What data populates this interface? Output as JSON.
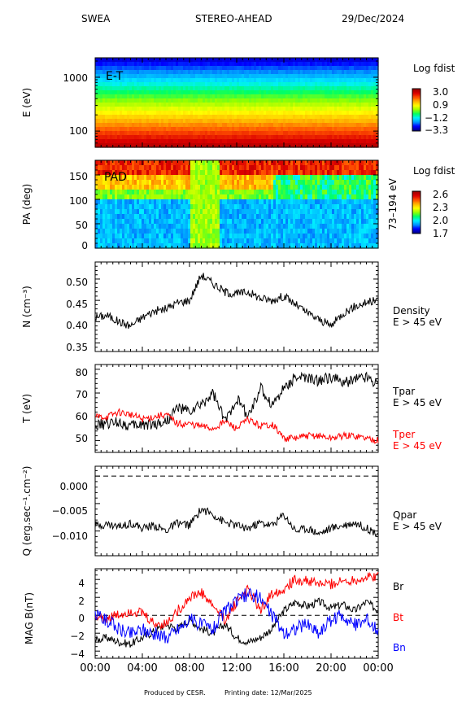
{
  "header": {
    "instrument": "SWEA",
    "spacecraft": "STEREO-AHEAD",
    "date": "29/Dec/2024"
  },
  "footer": {
    "produced_by": "Produced by CESR.",
    "printing_date": "Printing date: 12/Mar/2025"
  },
  "time_axis": {
    "tick_labels": [
      "00:00",
      "04:00",
      "08:00",
      "12:00",
      "16:00",
      "20:00",
      "00:00"
    ],
    "range_hours": [
      0,
      24
    ]
  },
  "colors": {
    "black_trace": "#000000",
    "red_trace": "#ff0000",
    "blue_trace": "#0000ff",
    "colorbar_stops": [
      "#00008c",
      "#0000ff",
      "#0096ff",
      "#00f0ff",
      "#00ff64",
      "#96ff00",
      "#ffff00",
      "#ffb400",
      "#ff5000",
      "#dc0000",
      "#a00000"
    ]
  },
  "chart_data": [
    {
      "type": "heatmap",
      "inner_label": "E-T",
      "ylabel": "E (eV)",
      "y_scale": "log",
      "y_ticks": [
        "1000",
        "100"
      ],
      "colorbar_title": "Log fdist",
      "colorbar_ticks": [
        "3.0",
        "0.9",
        "−1.2",
        "−3.3"
      ],
      "colorbar_range": [
        -3.3,
        3.0
      ]
    },
    {
      "type": "heatmap",
      "inner_label": "PAD",
      "ylabel": "PA (deg)",
      "ylim": [
        0,
        180
      ],
      "y_ticks": [
        "150",
        "100",
        "50",
        "0"
      ],
      "right_label": "73–194 eV",
      "colorbar_title": "Log fdist",
      "colorbar_ticks": [
        "2.6",
        "2.3",
        "2.0",
        "1.7"
      ],
      "colorbar_range": [
        1.7,
        2.6
      ]
    },
    {
      "type": "line",
      "ylabel": "N (cm⁻³)",
      "ylim": [
        0.33,
        0.54
      ],
      "y_ticks": [
        "0.50",
        "0.45",
        "0.40",
        "0.35"
      ],
      "series": [
        {
          "name": "Density",
          "note": "E > 45 eV",
          "color": "#000000",
          "x": [
            0,
            1,
            2,
            3,
            4,
            5,
            6,
            7,
            8,
            9,
            10,
            11,
            12,
            13,
            14,
            15,
            16,
            17,
            18,
            19,
            20,
            21,
            22,
            23,
            24
          ],
          "values": [
            0.41,
            0.415,
            0.4,
            0.39,
            0.41,
            0.425,
            0.43,
            0.445,
            0.45,
            0.51,
            0.49,
            0.47,
            0.465,
            0.47,
            0.455,
            0.45,
            0.46,
            0.44,
            0.42,
            0.405,
            0.39,
            0.42,
            0.435,
            0.445,
            0.45
          ]
        }
      ]
    },
    {
      "type": "line",
      "ylabel": "T (eV)",
      "ylim": [
        45,
        82
      ],
      "y_ticks": [
        "80",
        "70",
        "60",
        "50"
      ],
      "series": [
        {
          "name": "Tpar",
          "note": "E > 45 eV",
          "color": "#000000",
          "x": [
            0,
            1,
            2,
            3,
            4,
            5,
            6,
            7,
            8,
            9,
            10,
            11,
            12,
            13,
            14,
            15,
            16,
            17,
            18,
            19,
            20,
            21,
            22,
            23,
            24
          ],
          "values": [
            56,
            57,
            58,
            56,
            57,
            57,
            58,
            64,
            62,
            65,
            70,
            58,
            68,
            60,
            72,
            65,
            72,
            77,
            76,
            75,
            77,
            74,
            76,
            77,
            74
          ]
        },
        {
          "name": "Tper",
          "note": "E > 45 eV",
          "color": "#ff0000",
          "x": [
            0,
            1,
            2,
            3,
            4,
            5,
            6,
            7,
            8,
            9,
            10,
            11,
            12,
            13,
            14,
            15,
            16,
            17,
            18,
            19,
            20,
            21,
            22,
            23,
            24
          ],
          "values": [
            60,
            60,
            62,
            61,
            59,
            60,
            61,
            57,
            57,
            56,
            55,
            58,
            55,
            59,
            56,
            57,
            51,
            51,
            52,
            52,
            51,
            52,
            52,
            51,
            50
          ]
        }
      ]
    },
    {
      "type": "line",
      "ylabel": "Q (erg.sec⁻¹.cm⁻²)",
      "ylim": [
        -0.0145,
        0.0018
      ],
      "y_ticks": [
        "0.000",
        "−0.005",
        "−0.010"
      ],
      "reference_line": 0,
      "series": [
        {
          "name": "Qpar",
          "note": "E > 45 eV",
          "color": "#000000",
          "x": [
            0,
            1,
            2,
            3,
            4,
            5,
            6,
            7,
            8,
            9,
            10,
            11,
            12,
            13,
            14,
            15,
            16,
            17,
            18,
            19,
            20,
            21,
            22,
            23,
            24
          ],
          "values": [
            -0.009,
            -0.0088,
            -0.0092,
            -0.0085,
            -0.0095,
            -0.009,
            -0.01,
            -0.0085,
            -0.009,
            -0.006,
            -0.007,
            -0.0085,
            -0.009,
            -0.0095,
            -0.0085,
            -0.009,
            -0.007,
            -0.01,
            -0.0095,
            -0.0105,
            -0.0095,
            -0.009,
            -0.0085,
            -0.0095,
            -0.0105
          ]
        }
      ]
    },
    {
      "type": "line",
      "ylabel": "MAG B(nT)",
      "ylim": [
        -4.8,
        5.2
      ],
      "y_ticks": [
        "4",
        "2",
        "0",
        "−2",
        "−4"
      ],
      "reference_line": 0,
      "series": [
        {
          "name": "Br",
          "color": "#000000",
          "x": [
            0,
            1,
            2,
            3,
            4,
            5,
            6,
            7,
            8,
            9,
            10,
            11,
            12,
            13,
            14,
            15,
            16,
            17,
            18,
            19,
            20,
            21,
            22,
            23,
            24
          ],
          "values": [
            -2.8,
            -2.5,
            -3.0,
            -3.2,
            -2.5,
            -1.8,
            -1.0,
            -1.5,
            -0.5,
            -1.5,
            -2.0,
            -1.0,
            -2.5,
            -3.0,
            -2.5,
            -1.5,
            0.5,
            1.5,
            1.0,
            1.5,
            0.8,
            1.2,
            0.5,
            1.5,
            0.5
          ]
        },
        {
          "name": "Bt",
          "color": "#ff0000",
          "x": [
            0,
            1,
            2,
            3,
            4,
            5,
            6,
            7,
            8,
            9,
            10,
            11,
            12,
            13,
            14,
            15,
            16,
            17,
            18,
            19,
            20,
            21,
            22,
            23,
            24
          ],
          "values": [
            -0.2,
            -0.3,
            0.0,
            0.5,
            0.2,
            -1.0,
            -1.0,
            0.5,
            2.0,
            2.5,
            1.0,
            -0.5,
            1.5,
            3.0,
            0.5,
            2.5,
            3.0,
            4.0,
            3.8,
            3.5,
            3.5,
            3.8,
            4.0,
            4.2,
            4.4
          ]
        },
        {
          "name": "Bn",
          "color": "#0000ff",
          "x": [
            0,
            1,
            2,
            3,
            4,
            5,
            6,
            7,
            8,
            9,
            10,
            11,
            12,
            13,
            14,
            15,
            16,
            17,
            18,
            19,
            20,
            21,
            22,
            23,
            24
          ],
          "values": [
            0.0,
            -0.5,
            -1.5,
            -2.0,
            -1.5,
            -2.0,
            -2.5,
            -1.5,
            -0.5,
            -1.0,
            -1.5,
            0.5,
            1.5,
            2.5,
            2.0,
            0.0,
            -2.0,
            -1.5,
            -1.0,
            -2.0,
            -0.5,
            0.0,
            -1.0,
            -0.5,
            -1.5
          ]
        }
      ]
    }
  ]
}
